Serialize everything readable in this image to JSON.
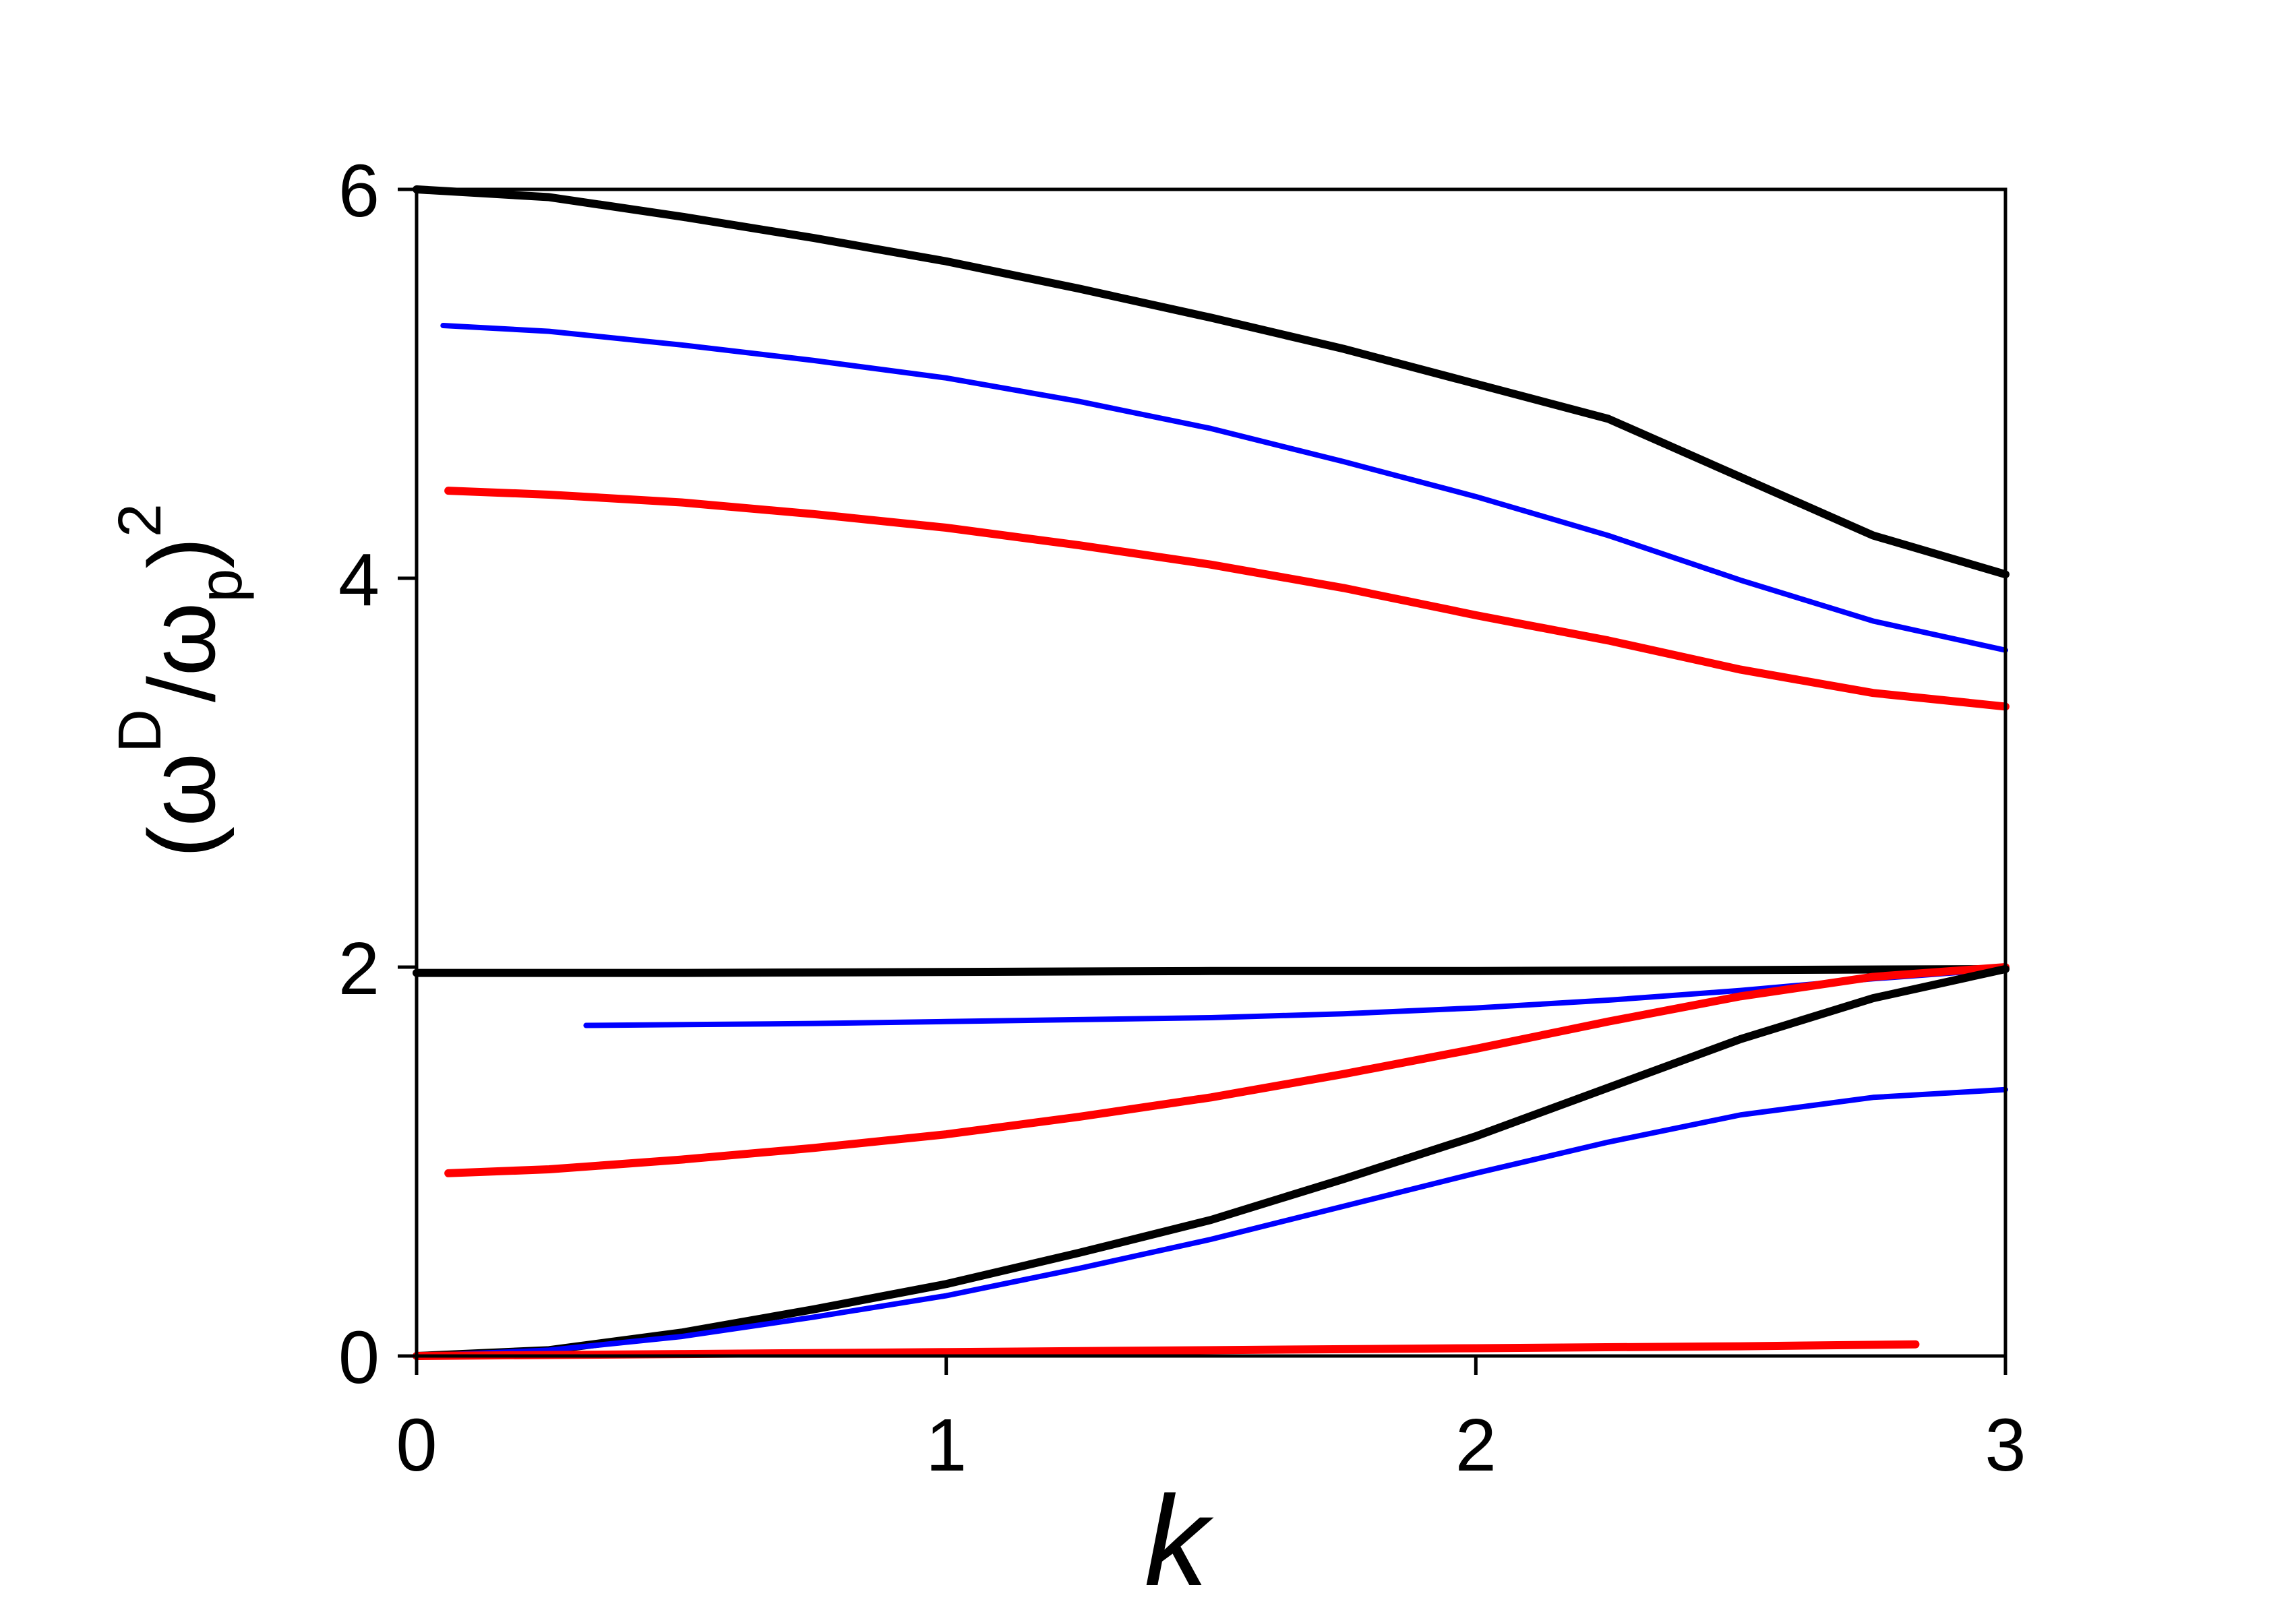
{
  "chart_data": {
    "type": "line",
    "title": "",
    "xlabel": "k",
    "ylabel": {
      "open": "(",
      "omega1": "ω",
      "sup_D": "D",
      "slash": "/",
      "omega2": "ω",
      "sub_p": "p",
      "close": ")",
      "sup_2": "2"
    },
    "xlim": [
      0,
      3
    ],
    "ylim": [
      0,
      6
    ],
    "x_ticks": [
      "0",
      "1",
      "2",
      "3"
    ],
    "y_ticks": [
      "0",
      "2",
      "4",
      "6"
    ],
    "grid": false,
    "legend": "none",
    "series": [
      {
        "color": "#000000",
        "width": 12,
        "x": [
          0,
          0.25,
          0.5,
          0.75,
          1.0,
          1.25,
          1.5,
          1.75,
          2.0,
          2.25,
          2.5,
          2.75,
          3.0
        ],
        "y": [
          6.0,
          5.96,
          5.86,
          5.75,
          5.63,
          5.49,
          5.34,
          5.18,
          5.0,
          4.82,
          4.52,
          4.22,
          4.02
        ]
      },
      {
        "color": "#0000ff",
        "width": 8,
        "x": [
          0.05,
          0.25,
          0.5,
          0.75,
          1.0,
          1.25,
          1.5,
          1.75,
          2.0,
          2.25,
          2.5,
          2.75,
          3.0
        ],
        "y": [
          5.3,
          5.27,
          5.2,
          5.12,
          5.03,
          4.91,
          4.77,
          4.6,
          4.42,
          4.22,
          3.99,
          3.78,
          3.63
        ]
      },
      {
        "color": "#ff0000",
        "width": 12,
        "x": [
          0.06,
          0.25,
          0.5,
          0.75,
          1.0,
          1.25,
          1.5,
          1.75,
          2.0,
          2.25,
          2.5,
          2.75,
          3.0
        ],
        "y": [
          4.45,
          4.43,
          4.39,
          4.33,
          4.26,
          4.17,
          4.07,
          3.95,
          3.81,
          3.68,
          3.53,
          3.41,
          3.34
        ]
      },
      {
        "color": "#000000",
        "width": 12,
        "x": [
          0.0,
          0.5,
          1.0,
          1.5,
          2.0,
          2.5,
          3.0
        ],
        "y": [
          1.97,
          1.97,
          1.975,
          1.98,
          1.98,
          1.985,
          1.99
        ]
      },
      {
        "color": "#0000ff",
        "width": 8,
        "x": [
          0.32,
          0.75,
          1.0,
          1.25,
          1.5,
          1.75,
          2.0,
          2.25,
          2.5,
          2.75,
          3.0
        ],
        "y": [
          1.7,
          1.71,
          1.72,
          1.73,
          1.74,
          1.76,
          1.79,
          1.83,
          1.88,
          1.94,
          1.99
        ]
      },
      {
        "color": "#ff0000",
        "width": 12,
        "x": [
          0.06,
          0.25,
          0.5,
          0.75,
          1.0,
          1.25,
          1.5,
          1.75,
          2.0,
          2.25,
          2.5,
          2.75,
          3.0
        ],
        "y": [
          0.94,
          0.96,
          1.01,
          1.07,
          1.14,
          1.23,
          1.33,
          1.45,
          1.58,
          1.72,
          1.85,
          1.95,
          2.0
        ]
      },
      {
        "color": "#000000",
        "width": 12,
        "x": [
          0.0,
          0.25,
          0.5,
          0.75,
          1.0,
          1.25,
          1.5,
          1.75,
          2.0,
          2.25,
          2.5,
          2.75,
          3.0
        ],
        "y": [
          0.0,
          0.03,
          0.12,
          0.24,
          0.37,
          0.53,
          0.7,
          0.91,
          1.13,
          1.38,
          1.63,
          1.84,
          1.99
        ]
      },
      {
        "color": "#0000ff",
        "width": 8,
        "x": [
          0.0,
          0.25,
          0.5,
          0.75,
          1.0,
          1.25,
          1.5,
          1.75,
          2.0,
          2.25,
          2.5,
          2.75,
          3.0
        ],
        "y": [
          0.0,
          0.03,
          0.1,
          0.2,
          0.31,
          0.45,
          0.6,
          0.77,
          0.94,
          1.1,
          1.24,
          1.33,
          1.37
        ]
      },
      {
        "color": "#ff0000",
        "width": 12,
        "x": [
          0.0,
          0.5,
          1.0,
          1.5,
          2.0,
          2.5,
          2.83
        ],
        "y": [
          0.0,
          0.01,
          0.02,
          0.03,
          0.04,
          0.05,
          0.06
        ]
      }
    ]
  }
}
